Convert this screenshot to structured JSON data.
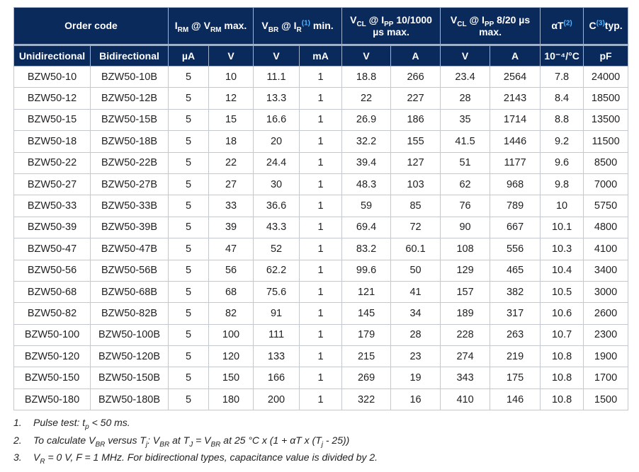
{
  "colors": {
    "header_bg": "#0b2a5c",
    "header_text": "#ffffff",
    "ref": "#4fb3ff"
  },
  "header_row1": [
    {
      "colspan": 2,
      "parts": [
        {
          "t": "Order code"
        }
      ]
    },
    {
      "colspan": 2,
      "parts": [
        {
          "t": "I"
        },
        {
          "t": "RM",
          "sub": true
        },
        {
          "t": " @ V"
        },
        {
          "t": "RM",
          "sub": true
        },
        {
          "t": " max."
        }
      ]
    },
    {
      "colspan": 2,
      "parts": [
        {
          "t": "V"
        },
        {
          "t": "BR",
          "sub": true
        },
        {
          "t": " @ I"
        },
        {
          "t": "R",
          "sub": true
        },
        {
          "t": "(1)",
          "sup": true
        },
        {
          "t": " min."
        }
      ]
    },
    {
      "colspan": 2,
      "parts": [
        {
          "t": "V"
        },
        {
          "t": "CL",
          "sub": true
        },
        {
          "t": " @ I"
        },
        {
          "t": "PP",
          "sub": true
        },
        {
          "t": " 10/1000 µs max."
        }
      ]
    },
    {
      "colspan": 2,
      "parts": [
        {
          "t": "V"
        },
        {
          "t": "CL",
          "sub": true
        },
        {
          "t": " @ I"
        },
        {
          "t": "PP",
          "sub": true
        },
        {
          "t": " 8/20 µs max."
        }
      ]
    },
    {
      "colspan": 1,
      "parts": [
        {
          "t": "αT"
        },
        {
          "t": "(2)",
          "sup": true
        }
      ]
    },
    {
      "colspan": 1,
      "parts": [
        {
          "t": "C"
        },
        {
          "t": "(3)",
          "sup": true
        },
        {
          "t": "typ."
        }
      ]
    }
  ],
  "header_row2": [
    "Unidirectional",
    "Bidirectional",
    "µA",
    "V",
    "V",
    "mA",
    "V",
    "A",
    "V",
    "A",
    "10⁻⁴/°C",
    "pF"
  ],
  "rows": [
    [
      "BZW50-10",
      "BZW50-10B",
      "5",
      "10",
      "11.1",
      "1",
      "18.8",
      "266",
      "23.4",
      "2564",
      "7.8",
      "24000"
    ],
    [
      "BZW50-12",
      "BZW50-12B",
      "5",
      "12",
      "13.3",
      "1",
      "22",
      "227",
      "28",
      "2143",
      "8.4",
      "18500"
    ],
    [
      "BZW50-15",
      "BZW50-15B",
      "5",
      "15",
      "16.6",
      "1",
      "26.9",
      "186",
      "35",
      "1714",
      "8.8",
      "13500"
    ],
    [
      "BZW50-18",
      "BZW50-18B",
      "5",
      "18",
      "20",
      "1",
      "32.2",
      "155",
      "41.5",
      "1446",
      "9.2",
      "11500"
    ],
    [
      "BZW50-22",
      "BZW50-22B",
      "5",
      "22",
      "24.4",
      "1",
      "39.4",
      "127",
      "51",
      "1177",
      "9.6",
      "8500"
    ],
    [
      "BZW50-27",
      "BZW50-27B",
      "5",
      "27",
      "30",
      "1",
      "48.3",
      "103",
      "62",
      "968",
      "9.8",
      "7000"
    ],
    [
      "BZW50-33",
      "BZW50-33B",
      "5",
      "33",
      "36.6",
      "1",
      "59",
      "85",
      "76",
      "789",
      "10",
      "5750"
    ],
    [
      "BZW50-39",
      "BZW50-39B",
      "5",
      "39",
      "43.3",
      "1",
      "69.4",
      "72",
      "90",
      "667",
      "10.1",
      "4800"
    ],
    [
      "BZW50-47",
      "BZW50-47B",
      "5",
      "47",
      "52",
      "1",
      "83.2",
      "60.1",
      "108",
      "556",
      "10.3",
      "4100"
    ],
    [
      "BZW50-56",
      "BZW50-56B",
      "5",
      "56",
      "62.2",
      "1",
      "99.6",
      "50",
      "129",
      "465",
      "10.4",
      "3400"
    ],
    [
      "BZW50-68",
      "BZW50-68B",
      "5",
      "68",
      "75.6",
      "1",
      "121",
      "41",
      "157",
      "382",
      "10.5",
      "3000"
    ],
    [
      "BZW50-82",
      "BZW50-82B",
      "5",
      "82",
      "91",
      "1",
      "145",
      "34",
      "189",
      "317",
      "10.6",
      "2600"
    ],
    [
      "BZW50-100",
      "BZW50-100B",
      "5",
      "100",
      "111",
      "1",
      "179",
      "28",
      "228",
      "263",
      "10.7",
      "2300"
    ],
    [
      "BZW50-120",
      "BZW50-120B",
      "5",
      "120",
      "133",
      "1",
      "215",
      "23",
      "274",
      "219",
      "10.8",
      "1900"
    ],
    [
      "BZW50-150",
      "BZW50-150B",
      "5",
      "150",
      "166",
      "1",
      "269",
      "19",
      "343",
      "175",
      "10.8",
      "1700"
    ],
    [
      "BZW50-180",
      "BZW50-180B",
      "5",
      "180",
      "200",
      "1",
      "322",
      "16",
      "410",
      "146",
      "10.8",
      "1500"
    ]
  ],
  "notes": [
    {
      "num": "1.",
      "parts": [
        {
          "t": "Pulse test: t"
        },
        {
          "t": "p",
          "sub": true
        },
        {
          "t": " < 50 ms."
        }
      ]
    },
    {
      "num": "2.",
      "parts": [
        {
          "t": "To calculate V"
        },
        {
          "t": "BR",
          "sub": true
        },
        {
          "t": " versus T"
        },
        {
          "t": "j",
          "sub": true
        },
        {
          "t": ": V"
        },
        {
          "t": "BR",
          "sub": true
        },
        {
          "t": " at T"
        },
        {
          "t": "J",
          "sub": true
        },
        {
          "t": " = V"
        },
        {
          "t": "BR",
          "sub": true
        },
        {
          "t": " at 25 °C x (1 + αT x (T"
        },
        {
          "t": "j",
          "sub": true
        },
        {
          "t": " - 25))"
        }
      ]
    },
    {
      "num": "3.",
      "parts": [
        {
          "t": "V"
        },
        {
          "t": "R",
          "sub": true
        },
        {
          "t": " = 0 V, F = 1 MHz. For bidirectional types, capacitance value is divided by 2."
        }
      ]
    }
  ]
}
